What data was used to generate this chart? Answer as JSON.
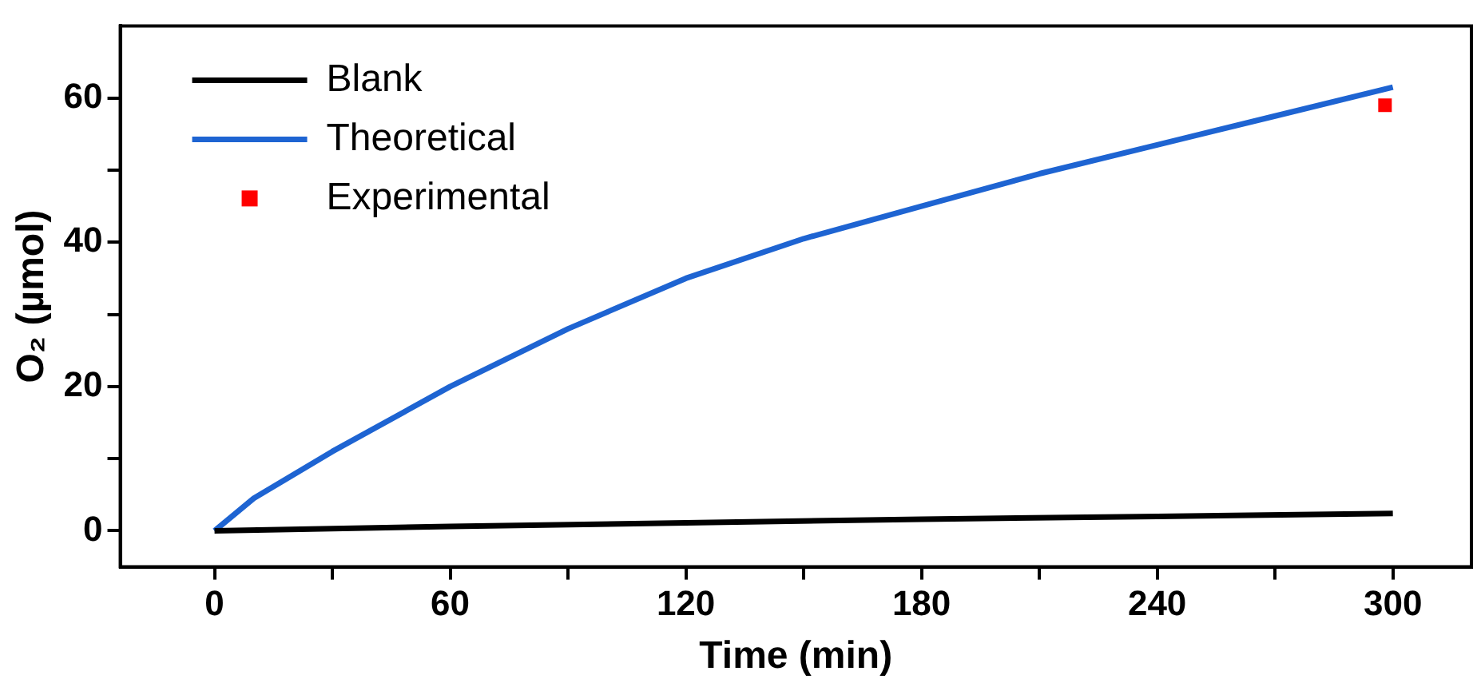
{
  "chart_data": {
    "type": "line",
    "xlabel": "Time (min)",
    "ylabel": "O₂ (µmol)",
    "xlim": [
      -24,
      320
    ],
    "xticks": [
      0,
      {
        "value": 30,
        "label": null
      },
      60,
      {
        "value": 90,
        "label": null
      },
      120,
      {
        "value": 150,
        "label": null
      },
      180,
      {
        "value": 210,
        "label": null
      },
      240,
      {
        "value": 270,
        "label": null
      },
      300
    ],
    "ylim": [
      -5,
      70
    ],
    "yticks": [
      0,
      {
        "value": 10,
        "label": null
      },
      20,
      {
        "value": 30,
        "label": null
      },
      40,
      {
        "value": 50,
        "label": null
      },
      60
    ],
    "grid": false,
    "legend": "top left",
    "series": [
      {
        "name": "Blank",
        "color": "#000000",
        "x": [
          0,
          60,
          120,
          180,
          240,
          300
        ],
        "values": [
          0,
          0.6,
          1.1,
          1.6,
          2.0,
          2.4
        ]
      },
      {
        "name": "Theoretical",
        "color": "#1e64d2",
        "x": [
          0,
          10,
          30,
          60,
          90,
          120,
          150,
          180,
          210,
          240,
          270,
          300
        ],
        "values": [
          0,
          4.5,
          11,
          20,
          28,
          35,
          40.5,
          45,
          49.5,
          53.5,
          57.5,
          61.5
        ]
      },
      {
        "name": "Experimental",
        "type": "scatter",
        "marker": "square",
        "color": "#ff0000",
        "x": [
          298
        ],
        "values": [
          59
        ]
      }
    ]
  }
}
